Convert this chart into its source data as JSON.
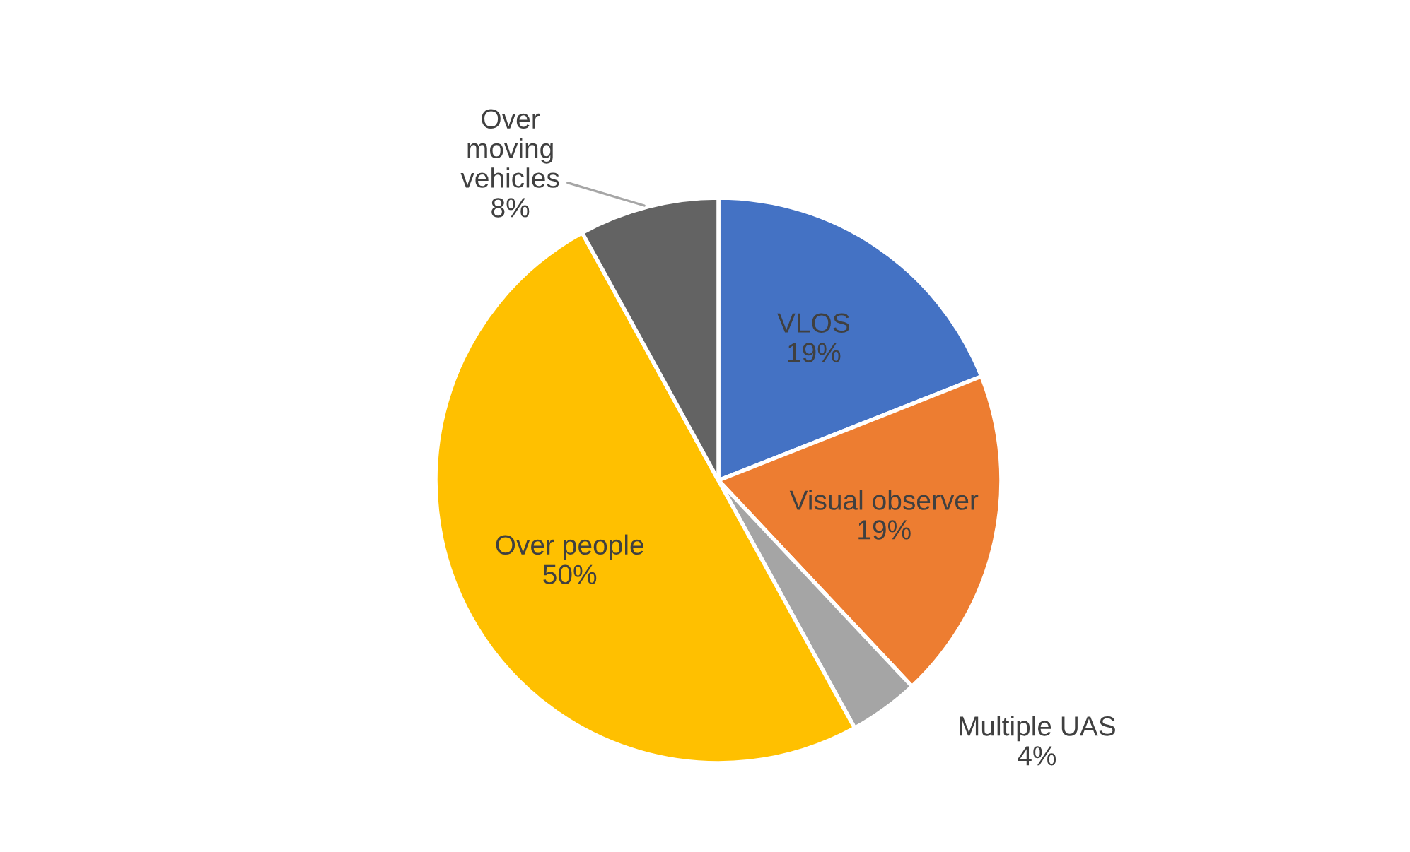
{
  "chart_data": {
    "type": "pie",
    "categories": [
      "VLOS",
      "Visual observer",
      "Multiple UAS",
      "Over people",
      "Over\nmoving\nvehicles"
    ],
    "values": [
      19,
      19,
      4,
      50,
      8
    ],
    "value_labels": [
      "19%",
      "19%",
      "4%",
      "50%",
      "8%"
    ],
    "colors": [
      "#4472c4",
      "#ed7d31",
      "#a5a5a5",
      "#ffc000",
      "#636363"
    ],
    "legend": false
  }
}
